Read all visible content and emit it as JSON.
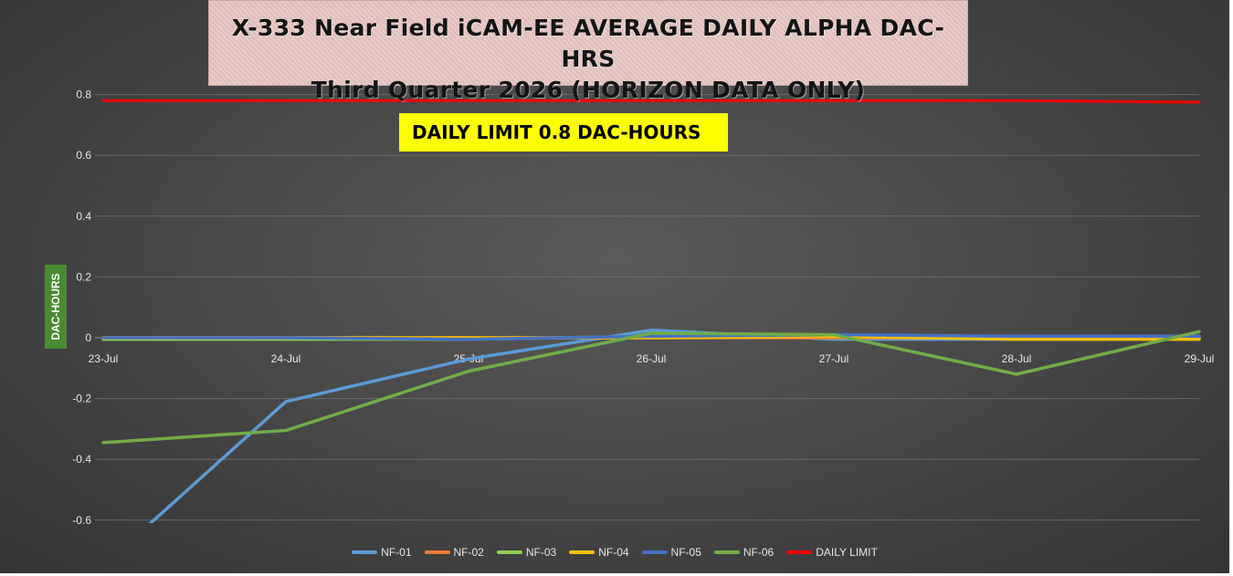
{
  "chart_data": {
    "type": "line",
    "title": "X-333 Near Field iCAM-EE AVERAGE DAILY ALPHA DAC-HRS",
    "subtitle": "Third Quarter 2026 (HORIZON DATA ONLY)",
    "ylabel": "DAC-HOURS",
    "xlabel": "",
    "ylim": [
      -0.7,
      0.8
    ],
    "yticks": [
      "0.8",
      "0.6",
      "0.4",
      "0.2",
      "0",
      "-0.2",
      "-0.4",
      "-0.6"
    ],
    "ytick_values": [
      0.8,
      0.6,
      0.4,
      0.2,
      0,
      -0.2,
      -0.4,
      -0.6
    ],
    "categories": [
      "23-Jul",
      "24-Jul",
      "25-Jul",
      "26-Jul",
      "27-Jul",
      "28-Jul",
      "29-Jul"
    ],
    "grid": true,
    "legend_position": "bottom",
    "annotation": "DAILY LIMIT 0.8 DAC-HOURS",
    "series": [
      {
        "name": "NF-01",
        "color": "#5b9bd5",
        "values": [
          -0.75,
          -0.21,
          -0.07,
          0.025,
          -0.005,
          -0.005,
          0.005
        ]
      },
      {
        "name": "NF-02",
        "color": "#ed7d31",
        "values": [
          0,
          0,
          0,
          0,
          0,
          0,
          0
        ]
      },
      {
        "name": "NF-03",
        "color": "#8fd14f",
        "values": [
          -0.005,
          -0.005,
          -0.005,
          0.005,
          0.005,
          0.0,
          0.005
        ]
      },
      {
        "name": "NF-04",
        "color": "#ffc000",
        "values": [
          0,
          0,
          0,
          0,
          0.005,
          -0.005,
          -0.005
        ]
      },
      {
        "name": "NF-05",
        "color": "#4472c4",
        "values": [
          0.0,
          0.0,
          -0.005,
          0.005,
          0.01,
          0.005,
          0.005
        ]
      },
      {
        "name": "NF-06",
        "color": "#70ad47",
        "values": [
          -0.345,
          -0.305,
          -0.11,
          0.015,
          0.01,
          -0.12,
          0.02
        ]
      },
      {
        "name": "DAILY LIMIT",
        "color": "#ff0000",
        "values": [
          0.78,
          0.78,
          0.78,
          0.78,
          0.78,
          0.78,
          0.775
        ]
      }
    ]
  }
}
